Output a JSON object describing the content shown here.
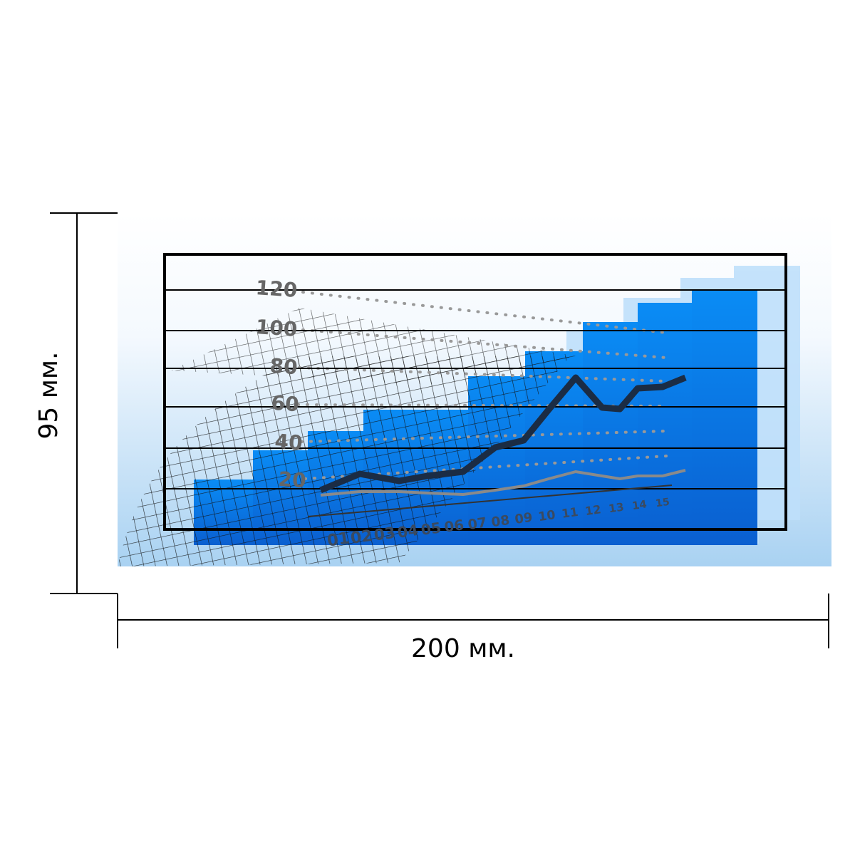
{
  "dimensions": {
    "height": "95 мм.",
    "width": "200 мм."
  },
  "image": {
    "y_labels": [
      "120",
      "100",
      "80",
      "60",
      "40",
      "20"
    ],
    "x_labels": [
      "01",
      "02",
      "03",
      "04",
      "05",
      "06",
      "07",
      "08",
      "09",
      "10",
      "11",
      "12",
      "13",
      "14",
      "15"
    ]
  }
}
